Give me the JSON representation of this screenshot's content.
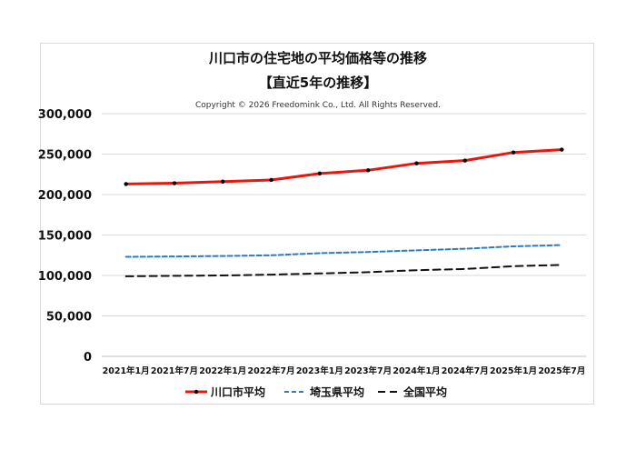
{
  "chart_data": {
    "type": "line",
    "title": "川口市の住宅地の平均価格等の推移",
    "subtitle": "【直近5年の推移】",
    "copyright": "Copyright © 2026 Freedomink Co., Ltd. All Rights Reserved.",
    "categories": [
      "2021年1月",
      "2021年7月",
      "2022年1月",
      "2022年7月",
      "2023年1月",
      "2023年7月",
      "2024年1月",
      "2024年7月",
      "2025年1月",
      "2025年7月"
    ],
    "ylim": [
      0,
      300000
    ],
    "yticks": [
      "0",
      "50,000",
      "100,000",
      "150,000",
      "200,000",
      "250,000",
      "300,000"
    ],
    "grid": true,
    "legend_position": "bottom",
    "series": [
      {
        "name": "川口市平均",
        "color": "#e8160c",
        "style": "solid-markers",
        "values": [
          213000,
          214000,
          216000,
          218000,
          226000,
          230000,
          238500,
          242000,
          252000,
          255500
        ]
      },
      {
        "name": "埼玉県平均",
        "color": "#2e7bbf",
        "style": "dashed",
        "values": [
          123000,
          123500,
          124000,
          125000,
          127500,
          129000,
          131000,
          133000,
          136000,
          137500
        ]
      },
      {
        "name": "全国平均",
        "color": "#111111",
        "style": "long-dashed",
        "values": [
          99000,
          99500,
          100000,
          101000,
          102500,
          104000,
          106500,
          108000,
          111500,
          113000
        ]
      }
    ]
  }
}
